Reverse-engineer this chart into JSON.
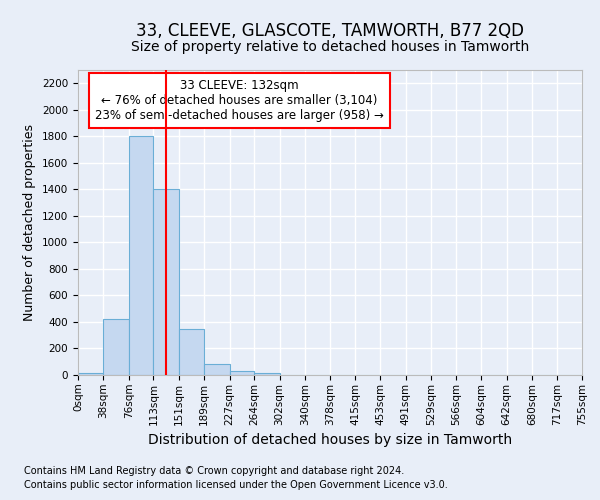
{
  "title": "33, CLEEVE, GLASCOTE, TAMWORTH, B77 2QD",
  "subtitle": "Size of property relative to detached houses in Tamworth",
  "xlabel": "Distribution of detached houses by size in Tamworth",
  "ylabel": "Number of detached properties",
  "footnote1": "Contains HM Land Registry data © Crown copyright and database right 2024.",
  "footnote2": "Contains public sector information licensed under the Open Government Licence v3.0.",
  "annotation_line1": "33 CLEEVE: 132sqm",
  "annotation_line2": "← 76% of detached houses are smaller (3,104)",
  "annotation_line3": "23% of semi-detached houses are larger (958) →",
  "bar_edges": [
    0,
    38,
    76,
    113,
    151,
    189,
    227,
    264,
    302,
    340,
    378,
    415,
    453,
    491,
    529,
    566,
    604,
    642,
    680,
    717,
    755
  ],
  "bar_heights": [
    15,
    420,
    1800,
    1400,
    350,
    80,
    30,
    15,
    0,
    0,
    0,
    0,
    0,
    0,
    0,
    0,
    0,
    0,
    0,
    0
  ],
  "bar_color": "#c5d8f0",
  "bar_edge_color": "#6aaed6",
  "red_line_x": 132,
  "ylim": [
    0,
    2300
  ],
  "yticks": [
    0,
    200,
    400,
    600,
    800,
    1000,
    1200,
    1400,
    1600,
    1800,
    2000,
    2200
  ],
  "bg_color": "#e8eef8",
  "plot_bg_color": "#e8eef8",
  "grid_color": "#ffffff",
  "title_fontsize": 12,
  "subtitle_fontsize": 10,
  "xlabel_fontsize": 10,
  "ylabel_fontsize": 9,
  "tick_fontsize": 7.5,
  "footnote_fontsize": 7,
  "annotation_fontsize": 8.5
}
